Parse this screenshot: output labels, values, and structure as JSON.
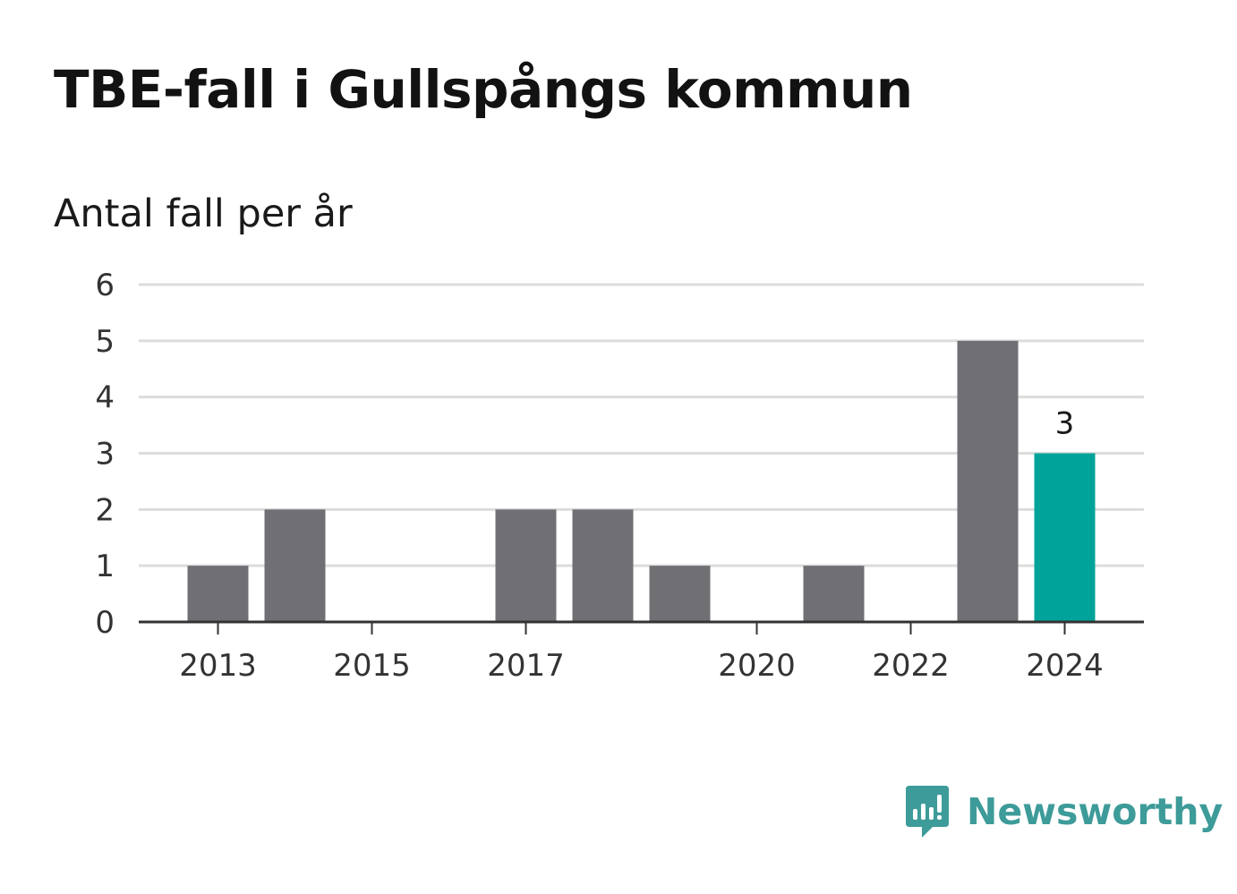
{
  "chart_data": {
    "type": "bar",
    "title": "TBE-fall i Gullspångs kommun",
    "subtitle": "Antal fall per år",
    "x": [
      2013,
      2014,
      2015,
      2016,
      2017,
      2018,
      2019,
      2020,
      2021,
      2022,
      2023,
      2024
    ],
    "values": [
      1,
      2,
      0,
      0,
      2,
      2,
      1,
      0,
      1,
      0,
      5,
      3
    ],
    "xticks": [
      "2013",
      "2015",
      "2017",
      "2020",
      "2022",
      "2024"
    ],
    "yticks": [
      0,
      1,
      2,
      3,
      4,
      5,
      6
    ],
    "ylim": [
      0,
      6
    ],
    "grid": "horizontal",
    "highlight": {
      "x": 2024,
      "label": "3"
    },
    "colors": {
      "bar": "#706f74",
      "highlight": "#00a399",
      "grid": "#dcdcdc",
      "axis": "#333333"
    }
  },
  "brand": {
    "name": "Newsworthy",
    "icon": "newsworthy-logo-icon",
    "color": "#3d9b99"
  }
}
